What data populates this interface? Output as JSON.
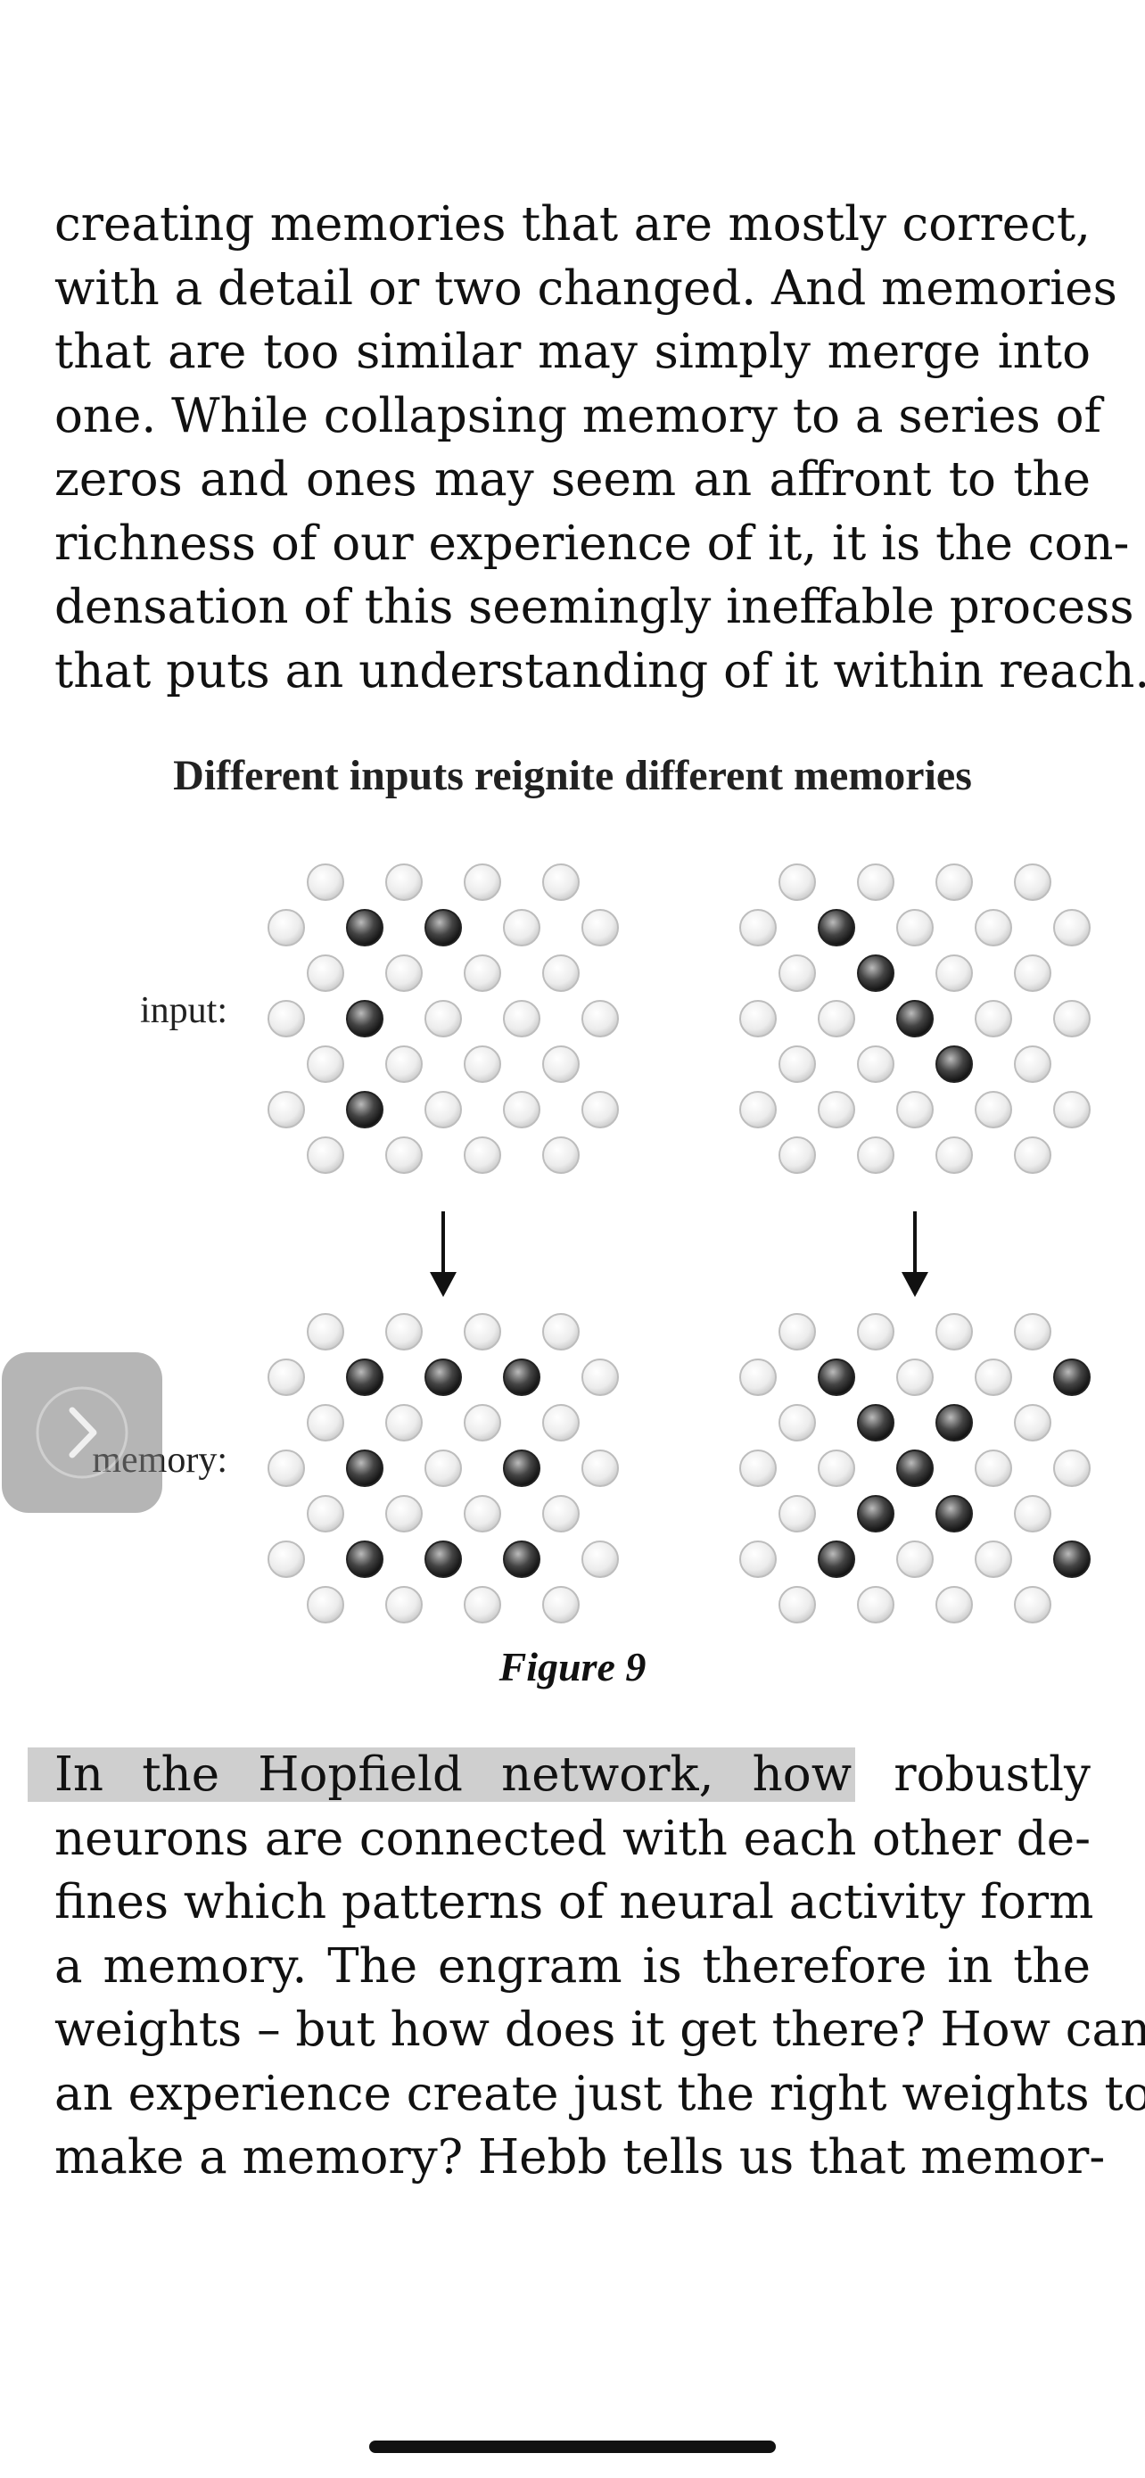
{
  "reader": {
    "paragraph_top": [
      "creating memories that are mostly correct,",
      "with a detail or two changed. And memories",
      "that are too similar may simply merge into",
      "one. While collapsing memory to a series of",
      "zeros and ones may seem an affront to the",
      "richness of our experience of it, it is the con-",
      "densation of this seemingly ineffable process",
      "that puts an understanding of it within reach."
    ],
    "figure": {
      "title": "Different inputs reignite different memories",
      "input_label": "input:",
      "memory_label": "memory:",
      "caption": "Figure 9",
      "grid": {
        "rows": 7,
        "active_color": "#555555",
        "inactive_color": "#eeeeee",
        "left_input_active": [
          [
            1,
            1
          ],
          [
            1,
            2
          ],
          [
            3,
            1
          ],
          [
            5,
            1
          ]
        ],
        "right_input_active": [
          [
            1,
            1
          ],
          [
            2,
            1
          ],
          [
            3,
            2
          ],
          [
            4,
            2
          ]
        ],
        "left_memory_active": [
          [
            1,
            1
          ],
          [
            1,
            2
          ],
          [
            1,
            3
          ],
          [
            3,
            1
          ],
          [
            3,
            3
          ],
          [
            5,
            1
          ],
          [
            5,
            2
          ],
          [
            5,
            3
          ]
        ],
        "right_memory_active": [
          [
            1,
            1
          ],
          [
            1,
            4
          ],
          [
            2,
            1
          ],
          [
            2,
            2
          ],
          [
            3,
            2
          ],
          [
            4,
            1
          ],
          [
            4,
            2
          ],
          [
            5,
            1
          ],
          [
            5,
            4
          ]
        ]
      }
    },
    "paragraph_bottom": {
      "highlighted": "In the Hopfield network, how",
      "first_line_rest": "robustly",
      "lines": [
        "neurons are connected with each other de-",
        "fines which patterns of neural activity form",
        "a memory. The engram is therefore in the",
        "weights – but how does it get there? How can",
        "an experience create just the right weights to",
        "make a memory? Hebb tells us that memor-"
      ]
    }
  },
  "controls": {
    "next_page_icon": "chevron-right-icon",
    "home_indicator": "home-indicator"
  }
}
